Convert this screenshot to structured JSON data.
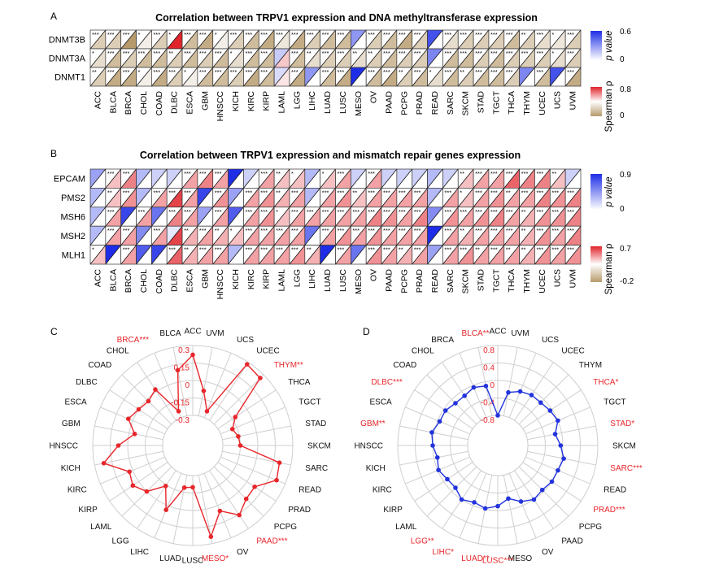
{
  "colors": {
    "pos_high": "#e0242b",
    "neg_high": "#b79a6c",
    "p_high": "#1f2ee6",
    "line_c": "#e8262b",
    "line_d": "#2233dd",
    "sig_label": "#e8262b",
    "grid": "#cfcfcf"
  },
  "chart_data": [
    {
      "panel": "A",
      "type": "heatmap",
      "title": "Correlation between TRPV1 expression and DNA methyltransferase expression",
      "columns": [
        "ACC",
        "BLCA",
        "BRCA",
        "CHOL",
        "COAD",
        "DLBC",
        "ESCA",
        "GBM",
        "HNSCC",
        "KICH",
        "KIRC",
        "KIRP",
        "LAML",
        "LGG",
        "LIHC",
        "LUAD",
        "LUSC",
        "MESO",
        "OV",
        "PAAD",
        "PCPG",
        "PRAD",
        "READ",
        "SARC",
        "SKCM",
        "STAD",
        "TGCT",
        "THCA",
        "THYM",
        "UCEC",
        "UCS",
        "UVM"
      ],
      "rows": [
        "DNMT3B",
        "DNMT3A",
        "DNMT1"
      ],
      "stars": [
        [
          "***",
          "***",
          "***",
          "*",
          "***",
          "*",
          "***",
          "***",
          "*",
          "***",
          "***",
          "***",
          "***",
          "***",
          "***",
          "***",
          "***",
          "",
          "***",
          "***",
          "***",
          "***",
          "",
          "***",
          "***",
          "***",
          "***",
          "***",
          "**",
          "***",
          "*",
          "***"
        ],
        [
          "*",
          "***",
          "***",
          "***",
          "***",
          "**",
          "***",
          "***",
          "***",
          "*",
          "***",
          "***",
          "",
          "***",
          "**",
          "***",
          "***",
          "**",
          "**",
          "***",
          "***",
          "***",
          "",
          "***",
          "***",
          "***",
          "***",
          "***",
          "***",
          "***",
          "*",
          "***"
        ],
        [
          "**",
          "***",
          "***",
          "*",
          "***",
          "***",
          "*",
          "***",
          "***",
          "***",
          "***",
          "***",
          "",
          "***",
          "",
          "***",
          "***",
          "",
          "***",
          "***",
          "**",
          "***",
          "*",
          "***",
          "**",
          "***",
          "***",
          "***",
          "",
          "***",
          "",
          "***"
        ]
      ],
      "rho": [
        [
          -0.3,
          -0.3,
          -0.6,
          -0.1,
          -0.3,
          0.9,
          -0.4,
          -0.5,
          -0.1,
          -0.3,
          -0.4,
          -0.5,
          -0.15,
          -0.5,
          -0.3,
          -0.4,
          -0.4,
          0,
          -0.3,
          -0.4,
          -0.5,
          -0.3,
          0,
          -0.2,
          -0.3,
          -0.3,
          -0.3,
          -0.4,
          -0.3,
          -0.2,
          -0.15,
          -0.3
        ],
        [
          -0.2,
          -0.4,
          -0.3,
          -0.4,
          -0.4,
          -0.3,
          -0.4,
          -0.3,
          -0.4,
          -0.2,
          -0.4,
          -0.4,
          0.2,
          -0.4,
          -0.2,
          -0.3,
          -0.3,
          -0.2,
          -0.3,
          -0.4,
          -0.3,
          -0.3,
          0,
          -0.4,
          -0.4,
          -0.3,
          -0.4,
          -0.3,
          -0.3,
          -0.3,
          -0.2,
          -0.3
        ],
        [
          -0.3,
          -0.5,
          -0.5,
          -0.1,
          -0.5,
          -0.3,
          -0.1,
          -0.4,
          -0.4,
          -0.3,
          -0.5,
          -0.4,
          0.1,
          -0.5,
          0,
          -0.4,
          -0.5,
          0,
          -0.4,
          -0.5,
          -0.3,
          -0.4,
          -0.2,
          -0.4,
          -0.3,
          -0.4,
          -0.4,
          -0.3,
          0,
          -0.4,
          0,
          -0.5
        ]
      ],
      "pval": [
        [
          0,
          0,
          0,
          0,
          0,
          0,
          0,
          0,
          0,
          0,
          0,
          0,
          0,
          0,
          0,
          0,
          0,
          0.3,
          0,
          0,
          0,
          0,
          0.5,
          0,
          0,
          0,
          0,
          0,
          0,
          0,
          0,
          0
        ],
        [
          0,
          0,
          0,
          0,
          0,
          0,
          0,
          0,
          0,
          0,
          0,
          0,
          0.15,
          0,
          0,
          0,
          0,
          0,
          0,
          0,
          0,
          0,
          0.35,
          0,
          0,
          0,
          0,
          0,
          0,
          0,
          0,
          0
        ],
        [
          0,
          0,
          0,
          0,
          0,
          0,
          0,
          0,
          0,
          0,
          0,
          0,
          0.1,
          0,
          0.3,
          0,
          0,
          0.6,
          0,
          0,
          0,
          0,
          0,
          0,
          0,
          0,
          0,
          0,
          0.35,
          0,
          0.5,
          0
        ]
      ],
      "legend": {
        "p_label": "p value",
        "p_ticks": [
          "0.6",
          "0"
        ],
        "rho_label": "Spearman ρ",
        "rho_ticks": [
          "0.8",
          "0"
        ]
      }
    },
    {
      "panel": "B",
      "type": "heatmap",
      "title": "Correlation between TRPV1 expression and mismatch repair genes expression",
      "columns": [
        "ACC",
        "BLCA",
        "BRCA",
        "CHOL",
        "COAD",
        "DLBC",
        "ESCA",
        "GBM",
        "HNSCC",
        "KICH",
        "KIRC",
        "KIRP",
        "LAML",
        "LGG",
        "LIHC",
        "LUAD",
        "LUSC",
        "MESO",
        "OV",
        "PAAD",
        "PCPG",
        "PRAD",
        "READ",
        "SARC",
        "SKCM",
        "STAD",
        "TGCT",
        "THCA",
        "THYM",
        "UCEC",
        "UCS",
        "UVM"
      ],
      "rows": [
        "EPCAM",
        "PMS2",
        "MSH6",
        "MSH2",
        "MLH1"
      ],
      "stars": [
        [
          "",
          "***",
          "***",
          "",
          "",
          "",
          "***",
          "***",
          "***",
          "",
          "",
          "***",
          "**",
          "*",
          "",
          "*",
          "***",
          "",
          "***",
          "",
          "",
          "",
          "",
          "",
          "**",
          "***",
          "***",
          "***",
          "***",
          "***",
          "**",
          ""
        ],
        [
          "",
          "**",
          "***",
          "",
          "***",
          "***",
          "***",
          "",
          "***",
          "",
          "***",
          "***",
          "**",
          "***",
          "",
          "***",
          "***",
          "**",
          "***",
          "***",
          "***",
          "***",
          "",
          "***",
          "*",
          "***",
          "***",
          "**",
          "***",
          "***",
          "***",
          "***"
        ],
        [
          "",
          "***",
          "",
          "***",
          "",
          "***",
          "***",
          "",
          "***",
          "",
          "***",
          "***",
          "*",
          "***",
          "***",
          "***",
          "***",
          "***",
          "***",
          "***",
          "***",
          "***",
          "",
          "***",
          "***",
          "***",
          "***",
          "***",
          "**",
          "***",
          "***",
          "***"
        ],
        [
          "",
          "***",
          "***",
          "",
          "***",
          "",
          "**",
          "***",
          "**",
          "*",
          "***",
          "***",
          "***",
          "***",
          "",
          "***",
          "***",
          "***",
          "***",
          "***",
          "***",
          "***",
          "",
          "***",
          "**",
          "***",
          "***",
          "***",
          "**",
          "***",
          "***",
          "***"
        ],
        [
          "*",
          "",
          "***",
          "",
          "",
          "***",
          "**",
          "***",
          "***",
          "",
          "***",
          "***",
          "***",
          "***",
          "**",
          "",
          "***",
          "",
          "***",
          "***",
          "**",
          "***",
          "",
          "***",
          "***",
          "**",
          "***",
          "**",
          "**",
          "***",
          "***",
          "***"
        ]
      ],
      "rho": [
        [
          0,
          0.2,
          0.4,
          0,
          0,
          0,
          0.3,
          0.4,
          0.3,
          0,
          0,
          0.3,
          0.2,
          0.2,
          0,
          0.2,
          0.3,
          0,
          0.3,
          0,
          0,
          0,
          0,
          0,
          0.2,
          0.3,
          0.3,
          0.5,
          0.4,
          0.4,
          0.2,
          0
        ],
        [
          0,
          0.2,
          0.35,
          0,
          0.3,
          0.6,
          0.3,
          0,
          0.35,
          0,
          0.3,
          0.35,
          0.25,
          0.3,
          0,
          0.3,
          0.35,
          0.2,
          0.3,
          0.3,
          0.3,
          0.3,
          0,
          0.3,
          0.2,
          0.3,
          0.35,
          0.3,
          0.3,
          0.4,
          0.35,
          0.4
        ],
        [
          0,
          0.3,
          0,
          0.3,
          0,
          0.4,
          0.3,
          0,
          0.3,
          0,
          0.3,
          0.35,
          0.2,
          0.3,
          0.3,
          0.3,
          0.3,
          0.3,
          0.4,
          0.35,
          0.3,
          0.4,
          0,
          0.35,
          0.3,
          0.35,
          0.4,
          0.3,
          0.25,
          0.35,
          0.35,
          0.4
        ],
        [
          0,
          0.3,
          0.3,
          0,
          0.3,
          0.6,
          0.25,
          0.3,
          0.25,
          0.2,
          0.3,
          0.3,
          0.3,
          0.3,
          0,
          0.3,
          0.35,
          0.3,
          0.35,
          0.3,
          0.3,
          0.3,
          0,
          0.3,
          0.25,
          0.3,
          0.3,
          0.3,
          0.25,
          0.35,
          0.3,
          0.4
        ],
        [
          0.2,
          0,
          0.3,
          0,
          0,
          0.5,
          0.25,
          0.3,
          0.3,
          0,
          0.3,
          0.3,
          0.3,
          0.35,
          0.25,
          0,
          0.3,
          0,
          0.35,
          0.3,
          0.25,
          0.3,
          0,
          0.3,
          0.35,
          0.3,
          0.3,
          0.3,
          0.25,
          0.35,
          0.3,
          0.35
        ]
      ],
      "pval": [
        [
          0.4,
          0,
          0,
          0.3,
          0.2,
          0.2,
          0,
          0,
          0,
          0.9,
          0.2,
          0,
          0,
          0,
          0.3,
          0,
          0,
          0.2,
          0,
          0.2,
          0.2,
          0.2,
          0.3,
          0.2,
          0,
          0,
          0,
          0,
          0,
          0,
          0,
          0.2
        ],
        [
          0.3,
          0,
          0,
          0.3,
          0,
          0,
          0,
          0.8,
          0,
          0.4,
          0,
          0,
          0,
          0,
          0.3,
          0,
          0,
          0,
          0,
          0,
          0,
          0,
          0.3,
          0,
          0,
          0,
          0,
          0,
          0,
          0,
          0,
          0
        ],
        [
          0.3,
          0,
          0.8,
          0,
          0.6,
          0,
          0,
          0.4,
          0,
          0.7,
          0,
          0,
          0,
          0,
          0,
          0,
          0,
          0,
          0,
          0,
          0,
          0,
          0.5,
          0,
          0,
          0,
          0,
          0,
          0,
          0,
          0,
          0
        ],
        [
          0.3,
          0,
          0,
          0.5,
          0,
          0.1,
          0,
          0,
          0,
          0,
          0,
          0,
          0,
          0,
          0.6,
          0,
          0,
          0,
          0,
          0,
          0,
          0,
          0.9,
          0,
          0,
          0,
          0,
          0,
          0,
          0,
          0,
          0
        ],
        [
          0,
          0.9,
          0,
          0.7,
          0.8,
          0,
          0,
          0,
          0,
          0.3,
          0,
          0,
          0,
          0,
          0,
          0.9,
          0,
          0.6,
          0,
          0,
          0,
          0,
          0.4,
          0,
          0,
          0,
          0,
          0,
          0,
          0,
          0,
          0
        ]
      ],
      "legend": {
        "p_label": "p value",
        "p_ticks": [
          "0.9",
          "0"
        ],
        "rho_label": "Spearman ρ",
        "rho_ticks": [
          "0.7",
          "-0.2"
        ]
      }
    },
    {
      "panel": "C",
      "type": "line",
      "subtype": "radar",
      "rlim": [
        -0.3,
        0.3
      ],
      "ticks": [
        "0.3",
        "0.15",
        "0",
        "-0.15",
        "-0.3"
      ],
      "tick_values": [
        0.3,
        0.15,
        0,
        -0.15,
        -0.3
      ],
      "categories": [
        "ACC",
        "UVM",
        "UCS",
        "UCEC",
        "THYM**",
        "THCA",
        "TGCT",
        "STAD",
        "SKCM",
        "SARC",
        "READ",
        "PRAD",
        "PCPG",
        "PAAD***",
        "OV",
        "MESO*",
        "LUSC",
        "LUAD",
        "LIHC",
        "LGG",
        "LAML",
        "KIRP",
        "KIRC",
        "KICH",
        "HNSCC",
        "GBM",
        "ESCA",
        "DLBC",
        "COAD",
        "CHOL",
        "BRCA***",
        "BLCA"
      ],
      "significant": [
        false,
        false,
        false,
        false,
        true,
        false,
        false,
        false,
        false,
        false,
        false,
        false,
        false,
        true,
        false,
        true,
        false,
        false,
        false,
        false,
        false,
        false,
        false,
        false,
        false,
        false,
        false,
        false,
        false,
        false,
        true,
        false
      ],
      "values": [
        0.22,
        -0.08,
        -0.24,
        0.28,
        0.26,
        -0.12,
        -0.19,
        -0.16,
        -0.15,
        0.2,
        0.22,
        0.08,
        0.09,
        0.16,
        0.05,
        0.24,
        -0.2,
        -0.19,
        0.04,
        -0.14,
        0.0,
        0.06,
        0.03,
        0.22,
        0.08,
        -0.05,
        0.04,
        0.0,
        -0.02,
        0.02,
        -0.24,
        0.1
      ]
    },
    {
      "panel": "D",
      "type": "line",
      "subtype": "radar",
      "rlim": [
        -0.8,
        0.8
      ],
      "ticks": [
        "0.8",
        "0.4",
        "0",
        "-0.4",
        "-0.8"
      ],
      "tick_values": [
        0.8,
        0.4,
        0,
        -0.4,
        -0.8
      ],
      "categories": [
        "ACC",
        "UVM",
        "UCS",
        "UCEC",
        "THYM",
        "THCA*",
        "TGCT",
        "STAD*",
        "SKCM",
        "SARC***",
        "READ",
        "PRAD***",
        "PCPG",
        "PAAD",
        "OV",
        "MESO",
        "LUSC***",
        "LUAD**",
        "LIHC*",
        "LGG**",
        "LAML",
        "KIRP",
        "KIRC",
        "KICH",
        "HNSCC",
        "GBM**",
        "ESCA",
        "DLBC***",
        "COAD",
        "CHOL",
        "BRCA",
        "BLCA**"
      ],
      "significant": [
        false,
        false,
        false,
        false,
        false,
        true,
        false,
        true,
        false,
        true,
        false,
        true,
        false,
        false,
        false,
        false,
        true,
        true,
        true,
        true,
        false,
        false,
        false,
        false,
        false,
        true,
        false,
        true,
        false,
        false,
        false,
        true
      ],
      "values": [
        -0.8,
        -0.25,
        -0.15,
        -0.1,
        -0.1,
        -0.05,
        0.0,
        -0.15,
        -0.05,
        0.05,
        0.0,
        0.0,
        -0.05,
        0.0,
        -0.1,
        -0.25,
        -0.1,
        -0.02,
        -0.08,
        0.0,
        -0.12,
        -0.1,
        -0.02,
        -0.08,
        0.0,
        0.05,
        -0.05,
        -0.05,
        -0.12,
        -0.12,
        -0.05,
        -0.1
      ]
    }
  ]
}
